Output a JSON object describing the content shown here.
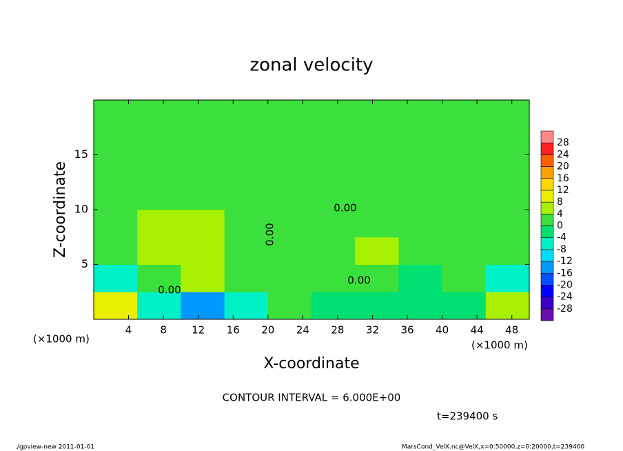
{
  "chart_data": {
    "type": "contour",
    "title": "zonal velocity",
    "x_label": "X-coordinate",
    "y_label": "Z-coordinate",
    "x_unit": "(×1000 m)",
    "x_unit_right": "(×1000 m)",
    "xlim": [
      0,
      50
    ],
    "ylim": [
      0,
      20
    ],
    "xticks": [
      4,
      8,
      12,
      16,
      20,
      24,
      28,
      32,
      36,
      40,
      44,
      48
    ],
    "yticks": [
      5,
      10,
      15
    ],
    "x": [
      2.5,
      7.5,
      12.5,
      17.5,
      22.5,
      27.5,
      32.5,
      37.5,
      42.5,
      47.5
    ],
    "y": [
      1.25,
      3.75,
      6.25,
      8.75,
      11.25,
      13.75,
      16.25,
      18.75
    ],
    "z": [
      [
        8,
        -6,
        -14,
        -6,
        0,
        -2,
        -2,
        -4,
        -3,
        6
      ],
      [
        -8,
        2,
        4,
        2,
        0,
        0,
        2,
        -2,
        2,
        -6
      ],
      [
        0,
        4,
        6,
        2,
        0,
        0,
        4,
        2,
        0,
        0
      ],
      [
        0,
        4,
        4,
        2,
        2,
        2,
        2,
        2,
        2,
        2
      ],
      [
        0,
        2,
        2,
        2,
        2,
        2,
        2,
        2,
        2,
        2
      ],
      [
        0,
        2,
        2,
        2,
        2,
        2,
        2,
        2,
        2,
        2
      ],
      [
        0,
        0,
        2,
        2,
        2,
        2,
        2,
        2,
        2,
        2
      ],
      [
        0,
        0,
        2,
        2,
        2,
        2,
        2,
        2,
        2,
        2
      ]
    ],
    "levels": [
      -28,
      -24,
      -20,
      -16,
      -12,
      -8,
      -4,
      0,
      4,
      8,
      12,
      16,
      20,
      24,
      28
    ],
    "colors": [
      "#6a0dad",
      "#3a00c8",
      "#0000ff",
      "#0050ff",
      "#0098ff",
      "#00dcff",
      "#00f0c8",
      "#00e070",
      "#3ce03c",
      "#a8f000",
      "#e8f000",
      "#ffd800",
      "#ffa000",
      "#ff6000",
      "#ff2020",
      "#ff8888"
    ],
    "annotations": [
      "0.00",
      "0.00",
      "0.00",
      "0.00"
    ],
    "contour_interval": "CONTOUR INTERVAL = 6.000E+00",
    "time_label": "t=239400 s",
    "footer_left": "./gpview-new   2011-01-01",
    "footer_right": "MarsCond_VelX.nc@VelX,x=0:50000,z=0:20000,t=239400"
  }
}
